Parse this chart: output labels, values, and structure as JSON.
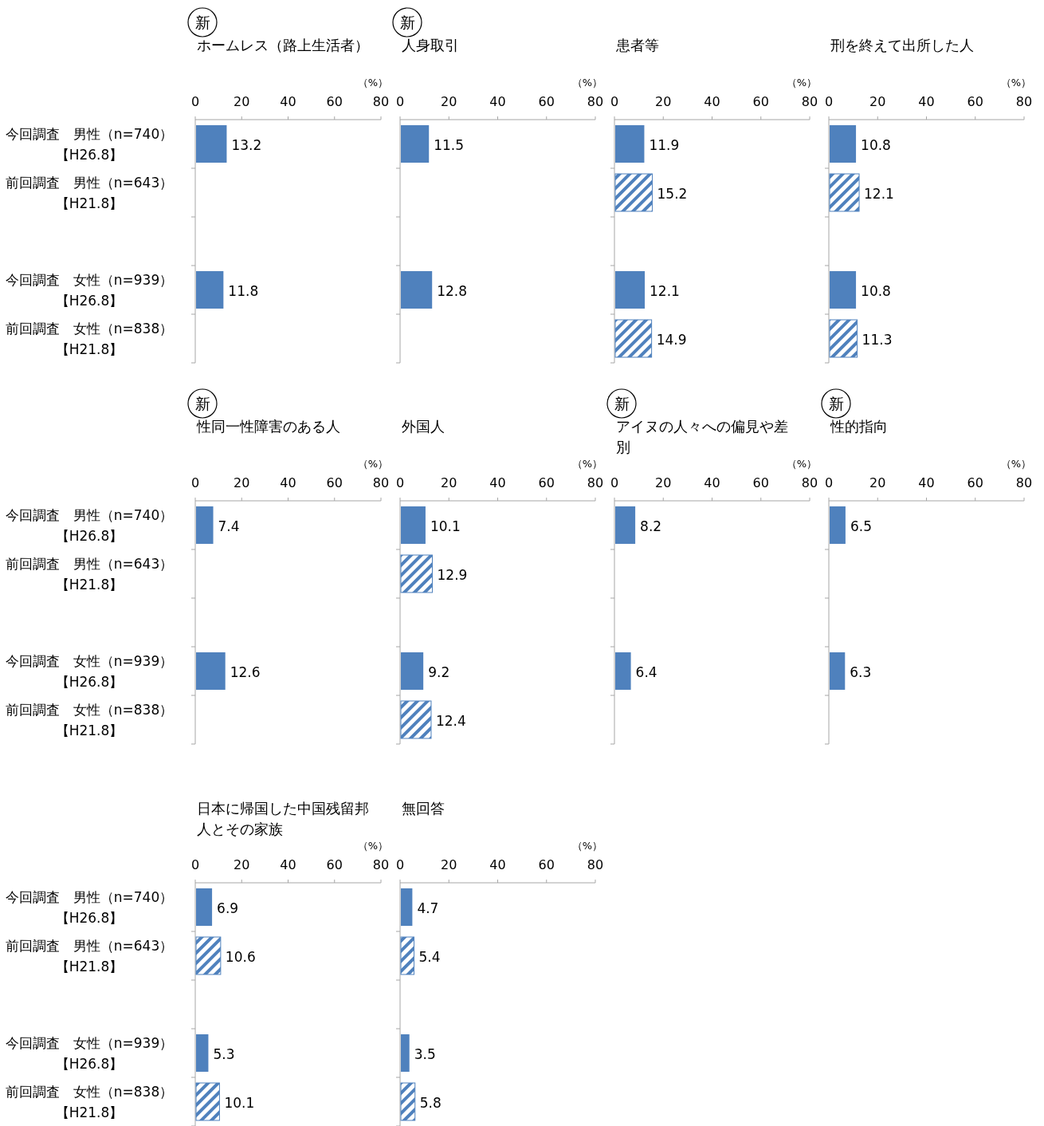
{
  "chart_data": [
    {
      "type": "bar",
      "orientation": "horizontal",
      "title": "ホームレス（路上生活者）",
      "xlabel": "（%）",
      "annotations": [
        "新"
      ],
      "categories": [
        "今回調査　男性（n=740）【H26.8】",
        "前回調査　男性（n=643）【H21.8】",
        null,
        "今回調査　女性（n=939）【H26.8】",
        "前回調査　女性（n=838）【H21.8】"
      ],
      "series": [
        {
          "color": "#4f81bd",
          "values": [
            13.2,
            null,
            null,
            11.8,
            null
          ]
        },
        {
          "color": "#4f81bd",
          "values": [
            null,
            null,
            null,
            null,
            null
          ]
        }
      ],
      "xlim": [
        0,
        80
      ],
      "xticks": [
        0,
        20,
        40,
        60,
        80
      ],
      "data_labels": true
    },
    {
      "type": "bar",
      "orientation": "horizontal",
      "title": "人身取引",
      "xlabel": "（%）",
      "annotations": [
        "新"
      ],
      "categories": [
        null,
        null,
        null,
        null,
        null
      ],
      "series": [
        {
          "color": "#4f81bd",
          "values": [
            11.5,
            null,
            null,
            12.8,
            null
          ]
        },
        {
          "color": "#4f81bd",
          "values": [
            null,
            null,
            null,
            null,
            null
          ]
        }
      ],
      "xlim": [
        0,
        80
      ],
      "xticks": [
        0,
        20,
        40,
        60,
        80
      ],
      "data_labels": true
    },
    {
      "type": "bar",
      "orientation": "horizontal",
      "title": "患者等",
      "xlabel": "（%）",
      "categories": [
        null,
        null,
        null,
        null,
        null
      ],
      "series": [
        {
          "color": "#4f81bd",
          "values": [
            11.9,
            null,
            null,
            12.1,
            null
          ]
        },
        {
          "color": "#4f81bd",
          "values": [
            null,
            15.2,
            null,
            null,
            14.9
          ]
        }
      ],
      "xlim": [
        0,
        80
      ],
      "xticks": [
        0,
        20,
        40,
        60,
        80
      ],
      "data_labels": true
    },
    {
      "type": "bar",
      "orientation": "horizontal",
      "title": "刑を終えて出所した人",
      "xlabel": "（%）",
      "categories": [
        null,
        null,
        null,
        null,
        null
      ],
      "series": [
        {
          "color": "#4f81bd",
          "values": [
            10.8,
            null,
            null,
            10.8,
            null
          ]
        },
        {
          "color": "#4f81bd",
          "values": [
            null,
            12.1,
            null,
            null,
            11.3
          ]
        }
      ],
      "xlim": [
        0,
        80
      ],
      "xticks": [
        0,
        20,
        40,
        60,
        80
      ],
      "data_labels": true
    },
    {
      "type": "bar",
      "orientation": "horizontal",
      "title": "性同一性障害のある人",
      "xlabel": "（%）",
      "annotations": [
        "新"
      ],
      "categories": [
        "今回調査　男性（n=740）【H26.8】",
        "前回調査　男性（n=643）【H21.8】",
        null,
        "今回調査　女性（n=939）【H26.8】",
        "前回調査　女性（n=838）【H21.8】"
      ],
      "series": [
        {
          "color": "#4f81bd",
          "values": [
            7.4,
            null,
            null,
            12.6,
            null
          ]
        },
        {
          "color": "#4f81bd",
          "values": [
            null,
            null,
            null,
            null,
            null
          ]
        }
      ],
      "xlim": [
        0,
        80
      ],
      "xticks": [
        0,
        20,
        40,
        60,
        80
      ],
      "data_labels": true
    },
    {
      "type": "bar",
      "orientation": "horizontal",
      "title": "外国人",
      "xlabel": "（%）",
      "categories": [
        null,
        null,
        null,
        null,
        null
      ],
      "series": [
        {
          "color": "#4f81bd",
          "values": [
            10.1,
            null,
            null,
            9.2,
            null
          ]
        },
        {
          "color": "#4f81bd",
          "values": [
            null,
            12.9,
            null,
            null,
            12.4
          ]
        }
      ],
      "xlim": [
        0,
        80
      ],
      "xticks": [
        0,
        20,
        40,
        60,
        80
      ],
      "data_labels": true
    },
    {
      "type": "bar",
      "orientation": "horizontal",
      "title": "アイヌの人々への偏見や差別",
      "xlabel": "（%）",
      "annotations": [
        "新"
      ],
      "categories": [
        null,
        null,
        null,
        null,
        null
      ],
      "series": [
        {
          "color": "#4f81bd",
          "values": [
            8.2,
            null,
            null,
            6.4,
            null
          ]
        },
        {
          "color": "#4f81bd",
          "values": [
            null,
            null,
            null,
            null,
            null
          ]
        }
      ],
      "xlim": [
        0,
        80
      ],
      "xticks": [
        0,
        20,
        40,
        60,
        80
      ],
      "data_labels": true
    },
    {
      "type": "bar",
      "orientation": "horizontal",
      "title": "性的指向",
      "xlabel": "（%）",
      "annotations": [
        "新"
      ],
      "categories": [
        null,
        null,
        null,
        null,
        null
      ],
      "series": [
        {
          "color": "#4f81bd",
          "values": [
            6.5,
            null,
            null,
            6.3,
            null
          ]
        },
        {
          "color": "#4f81bd",
          "values": [
            null,
            null,
            null,
            null,
            null
          ]
        }
      ],
      "xlim": [
        0,
        80
      ],
      "xticks": [
        0,
        20,
        40,
        60,
        80
      ],
      "data_labels": true
    },
    {
      "type": "bar",
      "orientation": "horizontal",
      "title": "日本に帰国した中国残留邦人とその家族",
      "xlabel": "（%）",
      "categories": [
        "今回調査　男性（n=740）【H26.8】",
        "前回調査　男性（n=643）【H21.8】",
        null,
        "今回調査　女性（n=939）【H26.8】",
        "前回調査　女性（n=838）【H21.8】"
      ],
      "series": [
        {
          "color": "#4f81bd",
          "values": [
            6.9,
            null,
            null,
            5.3,
            null
          ]
        },
        {
          "color": "#4f81bd",
          "values": [
            null,
            10.6,
            null,
            null,
            10.1
          ]
        }
      ],
      "xlim": [
        0,
        80
      ],
      "xticks": [
        0,
        20,
        40,
        60,
        80
      ],
      "data_labels": true
    },
    {
      "type": "bar",
      "orientation": "horizontal",
      "title": "無回答",
      "xlabel": "（%）",
      "categories": [
        null,
        null,
        null,
        null,
        null
      ],
      "series": [
        {
          "color": "#4f81bd",
          "values": [
            4.7,
            null,
            null,
            3.5,
            null
          ]
        },
        {
          "color": "#4f81bd",
          "values": [
            null,
            5.4,
            null,
            null,
            5.8
          ]
        }
      ],
      "xlim": [
        0,
        80
      ],
      "xticks": [
        0,
        20,
        40,
        60,
        80
      ],
      "data_labels": true
    }
  ]
}
